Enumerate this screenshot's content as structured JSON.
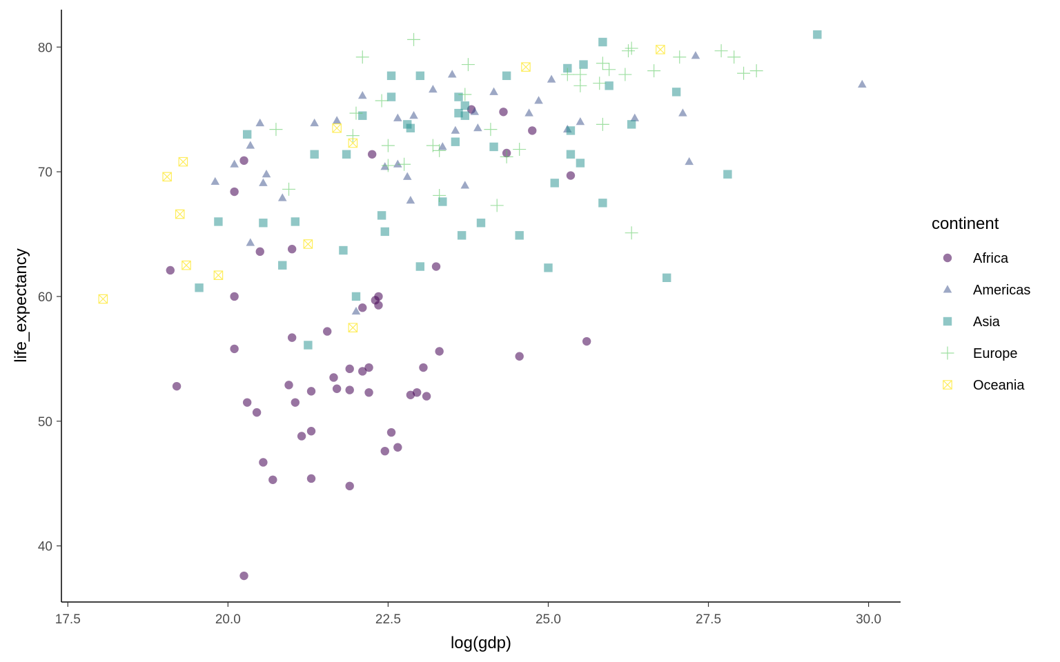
{
  "chart_data": {
    "type": "scatter",
    "xlabel": "log(gdp)",
    "ylabel": "life_expectancy",
    "xlim": [
      17.4,
      30.5
    ],
    "ylim": [
      35.5,
      83.0
    ],
    "xticks": [
      17.5,
      20.0,
      22.5,
      25.0,
      27.5,
      30.0
    ],
    "xtick_labels": [
      "17.5",
      "20.0",
      "22.5",
      "25.0",
      "27.5",
      "30.0"
    ],
    "yticks": [
      40,
      50,
      60,
      70,
      80
    ],
    "ytick_labels": [
      "40",
      "50",
      "60",
      "70",
      "80"
    ],
    "grid": false,
    "legend": {
      "title": "continent",
      "position": "right"
    },
    "series": [
      {
        "name": "Africa",
        "shape": "circle",
        "color": "#440154",
        "points": [
          [
            20.25,
            70.9
          ],
          [
            20.1,
            68.4
          ],
          [
            19.1,
            62.1
          ],
          [
            20.5,
            63.6
          ],
          [
            21.0,
            63.8
          ],
          [
            20.1,
            60.0
          ],
          [
            20.1,
            55.8
          ],
          [
            19.2,
            52.8
          ],
          [
            21.0,
            56.7
          ],
          [
            21.55,
            57.2
          ],
          [
            20.95,
            52.9
          ],
          [
            21.05,
            51.5
          ],
          [
            21.3,
            52.4
          ],
          [
            20.3,
            51.5
          ],
          [
            20.45,
            50.7
          ],
          [
            21.15,
            48.8
          ],
          [
            21.3,
            49.2
          ],
          [
            20.55,
            46.7
          ],
          [
            20.7,
            45.3
          ],
          [
            21.3,
            45.4
          ],
          [
            20.25,
            37.6
          ],
          [
            21.65,
            53.5
          ],
          [
            21.7,
            52.6
          ],
          [
            21.9,
            54.2
          ],
          [
            21.9,
            52.5
          ],
          [
            22.1,
            54.0
          ],
          [
            22.2,
            54.3
          ],
          [
            22.2,
            52.3
          ],
          [
            22.25,
            71.4
          ],
          [
            22.3,
            59.7
          ],
          [
            22.35,
            60.0
          ],
          [
            22.35,
            59.3
          ],
          [
            22.1,
            59.1
          ],
          [
            22.55,
            49.1
          ],
          [
            22.65,
            47.9
          ],
          [
            22.45,
            47.6
          ],
          [
            22.85,
            52.1
          ],
          [
            22.95,
            52.3
          ],
          [
            23.05,
            54.3
          ],
          [
            23.1,
            52.0
          ],
          [
            23.3,
            55.6
          ],
          [
            23.25,
            62.4
          ],
          [
            21.9,
            44.8
          ],
          [
            23.8,
            75.0
          ],
          [
            24.3,
            74.8
          ],
          [
            24.35,
            71.5
          ],
          [
            24.75,
            73.3
          ],
          [
            24.55,
            55.2
          ],
          [
            25.35,
            69.7
          ],
          [
            25.6,
            56.4
          ]
        ]
      },
      {
        "name": "Americas",
        "shape": "triangle",
        "color": "#3b528b",
        "points": [
          [
            20.5,
            73.9
          ],
          [
            20.35,
            72.1
          ],
          [
            20.1,
            70.6
          ],
          [
            19.8,
            69.2
          ],
          [
            20.6,
            69.8
          ],
          [
            20.55,
            69.1
          ],
          [
            20.85,
            67.9
          ],
          [
            20.35,
            64.3
          ],
          [
            21.35,
            73.9
          ],
          [
            21.7,
            74.1
          ],
          [
            22.1,
            76.1
          ],
          [
            22.65,
            74.3
          ],
          [
            22.9,
            74.5
          ],
          [
            22.65,
            70.6
          ],
          [
            22.45,
            70.4
          ],
          [
            22.8,
            69.6
          ],
          [
            22.85,
            67.7
          ],
          [
            23.2,
            76.6
          ],
          [
            23.35,
            72.0
          ],
          [
            23.5,
            77.8
          ],
          [
            23.55,
            73.3
          ],
          [
            23.85,
            74.8
          ],
          [
            23.9,
            73.5
          ],
          [
            23.7,
            68.9
          ],
          [
            24.15,
            76.4
          ],
          [
            24.7,
            74.7
          ],
          [
            24.85,
            75.7
          ],
          [
            25.05,
            77.4
          ],
          [
            25.3,
            73.4
          ],
          [
            25.5,
            74.0
          ],
          [
            26.35,
            74.3
          ],
          [
            27.1,
            74.7
          ],
          [
            27.2,
            70.8
          ],
          [
            27.3,
            79.3
          ],
          [
            29.9,
            77.0
          ],
          [
            22.0,
            58.8
          ]
        ]
      },
      {
        "name": "Asia",
        "shape": "square",
        "color": "#21908d",
        "points": [
          [
            20.3,
            73.0
          ],
          [
            19.85,
            66.0
          ],
          [
            19.55,
            60.7
          ],
          [
            20.55,
            65.9
          ],
          [
            20.85,
            62.5
          ],
          [
            21.05,
            66.0
          ],
          [
            21.35,
            71.4
          ],
          [
            21.25,
            56.1
          ],
          [
            21.8,
            63.7
          ],
          [
            21.85,
            71.4
          ],
          [
            22.0,
            60.0
          ],
          [
            22.1,
            74.5
          ],
          [
            22.4,
            66.5
          ],
          [
            22.45,
            65.2
          ],
          [
            22.55,
            77.7
          ],
          [
            22.55,
            76.0
          ],
          [
            22.8,
            73.8
          ],
          [
            22.85,
            73.5
          ],
          [
            23.0,
            77.7
          ],
          [
            23.0,
            62.4
          ],
          [
            23.35,
            67.6
          ],
          [
            23.55,
            72.4
          ],
          [
            23.6,
            76.0
          ],
          [
            23.6,
            74.7
          ],
          [
            23.65,
            64.9
          ],
          [
            23.7,
            74.5
          ],
          [
            23.7,
            75.3
          ],
          [
            23.95,
            65.9
          ],
          [
            24.15,
            72.0
          ],
          [
            24.35,
            77.7
          ],
          [
            24.55,
            64.9
          ],
          [
            25.0,
            62.3
          ],
          [
            25.1,
            69.1
          ],
          [
            25.3,
            78.3
          ],
          [
            25.35,
            73.3
          ],
          [
            25.35,
            71.4
          ],
          [
            25.5,
            70.7
          ],
          [
            25.55,
            78.6
          ],
          [
            25.85,
            67.5
          ],
          [
            25.85,
            80.4
          ],
          [
            25.95,
            76.9
          ],
          [
            26.3,
            73.8
          ],
          [
            26.85,
            61.5
          ],
          [
            27.0,
            76.4
          ],
          [
            27.8,
            69.8
          ],
          [
            29.2,
            81.0
          ]
        ]
      },
      {
        "name": "Europe",
        "shape": "plus",
        "color": "#5ec962",
        "points": [
          [
            20.75,
            73.4
          ],
          [
            20.95,
            68.6
          ],
          [
            22.0,
            74.7
          ],
          [
            22.1,
            79.2
          ],
          [
            22.4,
            75.7
          ],
          [
            22.5,
            72.1
          ],
          [
            22.5,
            70.5
          ],
          [
            22.75,
            70.6
          ],
          [
            22.9,
            80.6
          ],
          [
            23.2,
            72.1
          ],
          [
            23.3,
            71.7
          ],
          [
            23.3,
            68.1
          ],
          [
            23.7,
            76.2
          ],
          [
            23.75,
            78.6
          ],
          [
            24.1,
            73.4
          ],
          [
            24.2,
            67.3
          ],
          [
            24.35,
            71.2
          ],
          [
            24.55,
            71.8
          ],
          [
            25.3,
            77.8
          ],
          [
            25.5,
            76.9
          ],
          [
            25.5,
            77.8
          ],
          [
            25.8,
            77.1
          ],
          [
            25.85,
            78.7
          ],
          [
            25.95,
            78.2
          ],
          [
            25.85,
            73.8
          ],
          [
            26.2,
            77.8
          ],
          [
            26.25,
            79.7
          ],
          [
            26.3,
            79.9
          ],
          [
            26.3,
            65.1
          ],
          [
            26.65,
            78.1
          ],
          [
            27.05,
            79.2
          ],
          [
            27.7,
            79.7
          ],
          [
            27.9,
            79.2
          ],
          [
            28.05,
            77.9
          ],
          [
            28.25,
            78.1
          ],
          [
            21.95,
            72.9
          ]
        ]
      },
      {
        "name": "Oceania",
        "shape": "square-x",
        "color": "#fde725",
        "points": [
          [
            18.05,
            59.8
          ],
          [
            19.05,
            69.6
          ],
          [
            19.3,
            70.8
          ],
          [
            19.25,
            66.6
          ],
          [
            19.35,
            62.5
          ],
          [
            19.85,
            61.7
          ],
          [
            21.25,
            64.2
          ],
          [
            21.7,
            73.5
          ],
          [
            21.95,
            72.3
          ],
          [
            21.95,
            57.5
          ],
          [
            24.65,
            78.4
          ],
          [
            26.75,
            79.8
          ]
        ]
      }
    ]
  }
}
